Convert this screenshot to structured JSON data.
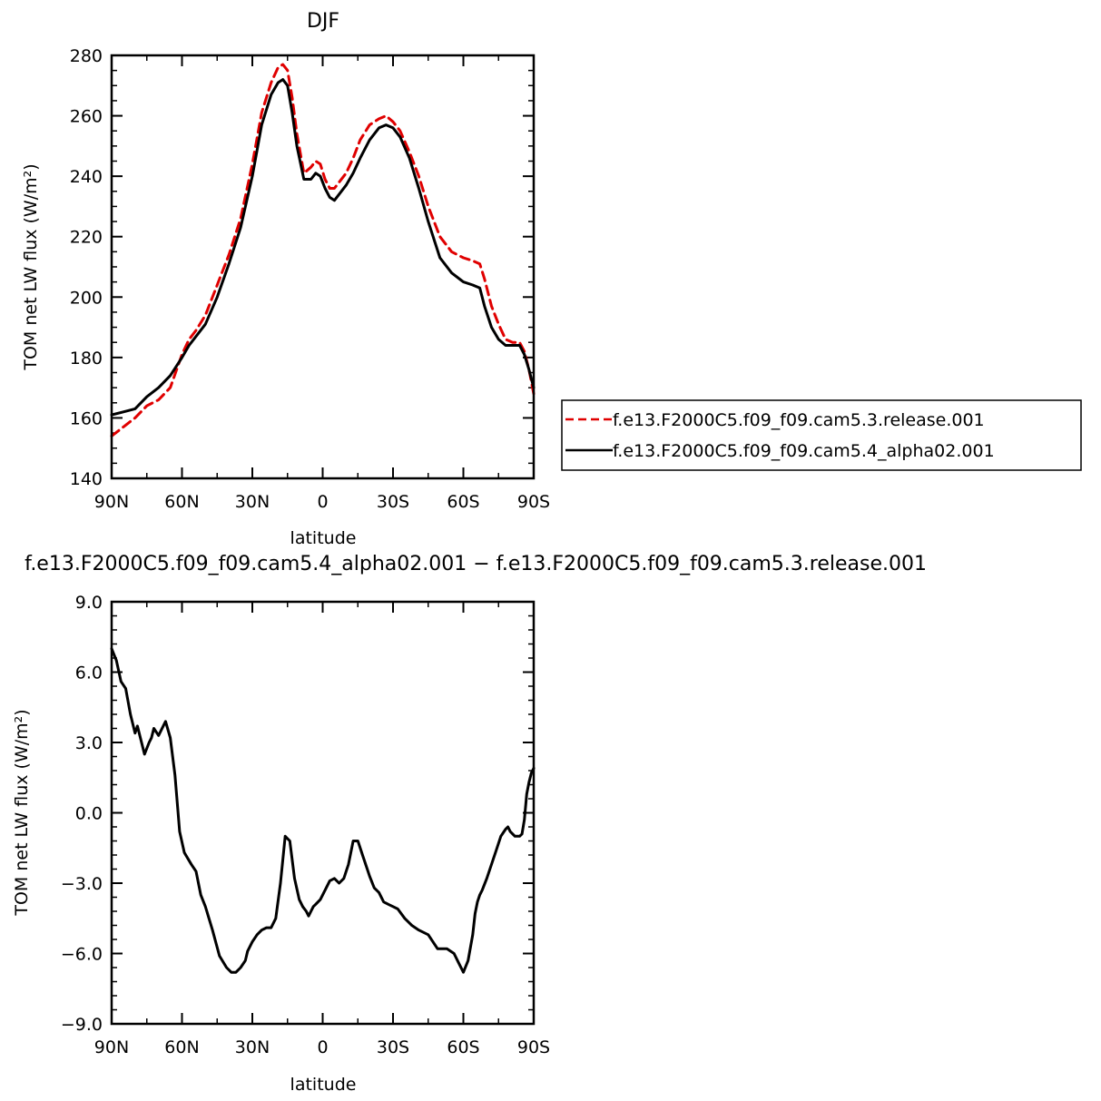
{
  "chart_data": [
    {
      "type": "line",
      "title": "DJF",
      "xlabel": "latitude",
      "ylabel": "TOM net LW flux (W/m²)",
      "xlim": [
        90,
        -90
      ],
      "ylim": [
        140,
        280
      ],
      "xticks": [
        90,
        60,
        30,
        0,
        -30,
        -60,
        -90
      ],
      "xtick_labels": [
        "90N",
        "60N",
        "30N",
        "0",
        "30S",
        "60S",
        "90S"
      ],
      "yticks": [
        140,
        160,
        180,
        200,
        220,
        240,
        260,
        280
      ],
      "ytick_labels": [
        "140",
        "160",
        "180",
        "200",
        "220",
        "240",
        "260",
        "280"
      ],
      "grid": false,
      "legend": "right",
      "series": [
        {
          "name": "f.e13.F2000C5.f09_f09.cam5.3.release.001",
          "color": "#e00000",
          "dash": "dashed",
          "x": [
            90,
            85,
            80,
            75,
            70,
            65,
            60,
            57,
            54,
            50,
            45,
            40,
            35,
            30,
            26,
            22,
            19,
            17,
            15,
            13,
            11,
            8,
            5,
            3,
            1,
            -1,
            -3,
            -5,
            -7,
            -10,
            -13,
            -16,
            -20,
            -24,
            -27,
            -30,
            -33,
            -37,
            -41,
            -45,
            -50,
            -55,
            -60,
            -64,
            -67,
            -69,
            -72,
            -75,
            -78,
            -81,
            -84,
            -86,
            -88,
            -90
          ],
          "y": [
            154,
            157,
            160,
            164,
            166,
            170,
            181,
            186,
            189,
            194,
            204,
            214,
            226,
            244,
            261,
            271,
            276,
            277,
            275,
            266,
            254,
            241,
            243,
            245,
            244,
            239,
            236,
            236,
            238,
            241,
            246,
            252,
            257,
            259,
            260,
            258,
            255,
            248,
            240,
            230,
            220,
            215,
            213,
            212,
            211,
            206,
            197,
            191,
            186,
            185,
            185,
            182,
            176,
            168
          ]
        },
        {
          "name": "f.e13.F2000C5.f09_f09.cam5.4_alpha02.001",
          "color": "#000000",
          "dash": "solid",
          "x": [
            90,
            85,
            80,
            75,
            70,
            65,
            60,
            57,
            54,
            50,
            45,
            40,
            35,
            30,
            26,
            22,
            19,
            17,
            15,
            13,
            11,
            8,
            5,
            3,
            1,
            -1,
            -3,
            -5,
            -7,
            -10,
            -13,
            -16,
            -20,
            -24,
            -27,
            -30,
            -33,
            -37,
            -41,
            -45,
            -50,
            -55,
            -60,
            -64,
            -67,
            -69,
            -72,
            -75,
            -78,
            -81,
            -84,
            -86,
            -88,
            -90
          ],
          "y": [
            161,
            162,
            163,
            167,
            170,
            174,
            180,
            184,
            187,
            191,
            200,
            211,
            223,
            240,
            257,
            267,
            271,
            272,
            270,
            261,
            250,
            239,
            239,
            241,
            240,
            236,
            233,
            232,
            234,
            237,
            241,
            246,
            252,
            256,
            257,
            256,
            253,
            246,
            236,
            225,
            213,
            208,
            205,
            204,
            203,
            197,
            190,
            186,
            184,
            184,
            184,
            181,
            176,
            170
          ]
        }
      ]
    },
    {
      "type": "line",
      "title": "f.e13.F2000C5.f09_f09.cam5.4_alpha02.001 − f.e13.F2000C5.f09_f09.cam5.3.release.001",
      "xlabel": "latitude",
      "ylabel": "TOM net LW flux (W/m²)",
      "xlim": [
        90,
        -90
      ],
      "ylim": [
        -9,
        9
      ],
      "xticks": [
        90,
        60,
        30,
        0,
        -30,
        -60,
        -90
      ],
      "xtick_labels": [
        "90N",
        "60N",
        "30N",
        "0",
        "30S",
        "60S",
        "90S"
      ],
      "yticks": [
        -9,
        -6,
        -3,
        0,
        3,
        6,
        9
      ],
      "ytick_labels": [
        "−9.0",
        "−6.0",
        "−3.0",
        "0.0",
        "3.0",
        "6.0",
        "9.0"
      ],
      "grid": false,
      "series": [
        {
          "color": "#000000",
          "dash": "solid",
          "x": [
            90,
            88,
            86,
            84,
            82,
            80,
            79,
            78,
            76,
            74,
            73,
            72,
            70,
            69,
            67,
            65,
            63,
            61,
            59,
            56,
            54,
            52,
            50,
            47,
            44,
            41,
            39,
            37,
            35,
            33,
            32,
            30,
            28,
            26,
            24,
            22,
            20,
            18,
            16,
            14,
            12,
            10,
            8.5,
            7,
            6,
            5,
            4,
            3,
            1,
            -1,
            -3,
            -5,
            -7,
            -9,
            -11,
            -13,
            -15,
            -17,
            -19,
            -20,
            -22,
            -24,
            -26,
            -28,
            -30,
            -32,
            -35,
            -38,
            -41,
            -45,
            -49,
            -53,
            -56,
            -58,
            -60,
            -62,
            -64,
            -65,
            -66,
            -67,
            -68,
            -70,
            -72,
            -74,
            -76,
            -78,
            -79,
            -80,
            -82,
            -84,
            -85,
            -86,
            -87,
            -88,
            -89,
            -90
          ],
          "y": [
            7.0,
            6.5,
            5.6,
            5.3,
            4.2,
            3.4,
            3.7,
            3.3,
            2.5,
            3.0,
            3.2,
            3.6,
            3.3,
            3.5,
            3.9,
            3.2,
            1.6,
            -0.8,
            -1.7,
            -2.2,
            -2.5,
            -3.5,
            -4.0,
            -5.0,
            -6.1,
            -6.6,
            -6.8,
            -6.8,
            -6.6,
            -6.3,
            -5.9,
            -5.5,
            -5.2,
            -5.0,
            -4.9,
            -4.9,
            -4.5,
            -3.0,
            -1.0,
            -1.2,
            -2.8,
            -3.7,
            -4.0,
            -4.2,
            -4.4,
            -4.2,
            -4.0,
            -3.9,
            -3.7,
            -3.3,
            -2.9,
            -2.8,
            -3.0,
            -2.8,
            -2.2,
            -1.2,
            -1.2,
            -1.8,
            -2.4,
            -2.7,
            -3.2,
            -3.4,
            -3.8,
            -3.9,
            -4.0,
            -4.1,
            -4.5,
            -4.8,
            -5.0,
            -5.2,
            -5.8,
            -5.8,
            -6.0,
            -6.4,
            -6.8,
            -6.3,
            -5.2,
            -4.3,
            -3.8,
            -3.5,
            -3.3,
            -2.8,
            -2.2,
            -1.6,
            -1.0,
            -0.7,
            -0.6,
            -0.8,
            -1.0,
            -1.0,
            -0.9,
            -0.3,
            0.8,
            1.3,
            1.7,
            1.9
          ]
        }
      ]
    }
  ]
}
